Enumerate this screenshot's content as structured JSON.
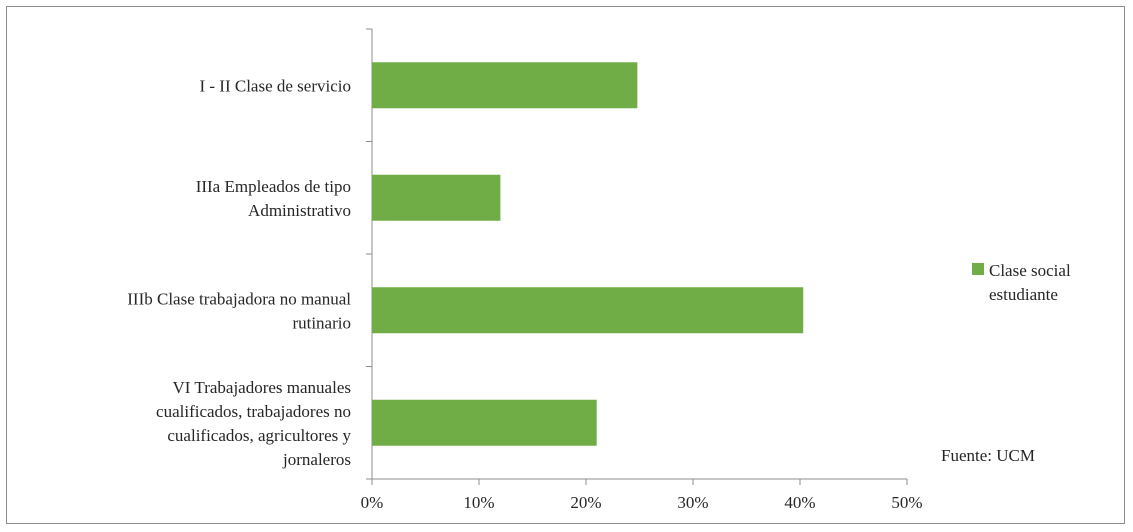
{
  "chart_data": {
    "type": "bar",
    "orientation": "horizontal",
    "categories": [
      [
        "I - II Clase de servicio"
      ],
      [
        "IIIa Empleados de tipo",
        "Administrativo"
      ],
      [
        "IIIb Clase trabajadora no manual",
        "rutinario"
      ],
      [
        "VI Trabajadores manuales",
        "cualificados, trabajadores no",
        "cualificados, agricultores y",
        "jornaleros"
      ]
    ],
    "series": [
      {
        "name": "Clase social estudiante",
        "values": [
          24.8,
          12.0,
          40.3,
          21.0
        ],
        "color": "#70ad47"
      }
    ],
    "legend_lines": [
      "Clase social",
      "estudiante"
    ],
    "x_ticks": [
      "0%",
      "10%",
      "20%",
      "30%",
      "40%",
      "50%"
    ],
    "xlim": [
      0,
      50
    ],
    "legend_position": "right",
    "grid": false,
    "annotation": "Fuente: UCM"
  }
}
